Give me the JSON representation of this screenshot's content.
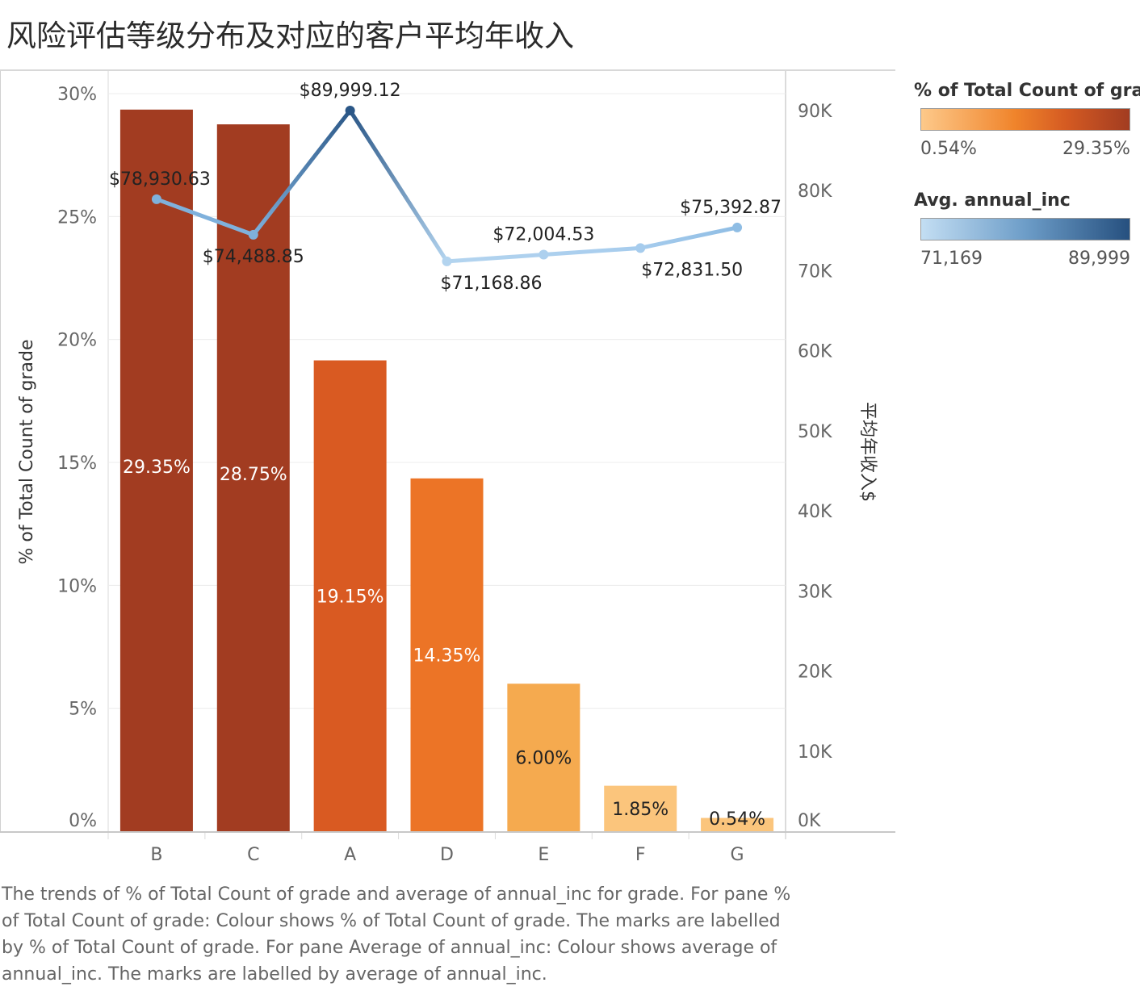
{
  "title": "风险评估等级分布及对应的客户平均年收入",
  "chart_data": {
    "type": "bar",
    "categories": [
      "B",
      "C",
      "A",
      "D",
      "E",
      "F",
      "G"
    ],
    "series": [
      {
        "name": "% of Total Count of grade",
        "axis": "left",
        "values": [
          29.35,
          28.75,
          19.15,
          14.35,
          6.0,
          1.85,
          0.54
        ],
        "labels": [
          "29.35%",
          "28.75%",
          "19.15%",
          "14.35%",
          "6.00%",
          "1.85%",
          "0.54%"
        ],
        "colors": [
          "#a23c21",
          "#a23c21",
          "#d95a22",
          "#ec7426",
          "#f5aa4f",
          "#fbc57c",
          "#fbc57c"
        ],
        "label_colors": [
          "#ffffff",
          "#ffffff",
          "#ffffff",
          "#ffffff",
          "#222222",
          "#222222",
          "#222222"
        ]
      },
      {
        "name": "Avg. annual_inc",
        "axis": "right",
        "type": "line",
        "values": [
          78930.63,
          74488.85,
          89999.12,
          71168.86,
          72004.53,
          72831.5,
          75392.87
        ],
        "labels": [
          "$78,930.63",
          "$74,488.85",
          "$89,999.12",
          "$71,168.86",
          "$72,004.53",
          "$72,831.50",
          "$75,392.87"
        ],
        "label_positions": [
          "above",
          "below",
          "above",
          "below",
          "above",
          "below",
          "above"
        ],
        "colors": [
          "#7fb1dc",
          "#7fb1dc",
          "#2b5787",
          "#b3d4ef",
          "#add0ee",
          "#a6cced",
          "#8fbde4"
        ]
      }
    ],
    "ylabel": "% of Total Count of grade",
    "ylabel_right": "平均年收入$",
    "yticks_left": [
      "0%",
      "5%",
      "10%",
      "15%",
      "20%",
      "25%",
      "30%"
    ],
    "yticks_left_values": [
      0,
      5,
      10,
      15,
      20,
      25,
      30
    ],
    "ylim_left": [
      0,
      30
    ],
    "yticks_right": [
      "0K",
      "10K",
      "20K",
      "30K",
      "40K",
      "50K",
      "60K",
      "70K",
      "80K",
      "90K"
    ],
    "yticks_right_values": [
      0,
      10000,
      20000,
      30000,
      40000,
      50000,
      60000,
      70000,
      80000,
      90000
    ],
    "ylim_right": [
      0,
      92000
    ],
    "grid": true
  },
  "legend": {
    "pct": {
      "title": "% of Total Count of gra..",
      "min": "0.54%",
      "max": "29.35%",
      "color_low": "#fdc98a",
      "color_high": "#a23c21"
    },
    "inc": {
      "title": "Avg. annual_inc",
      "min": "71,169",
      "max": "89,999",
      "color_low": "#c3def3",
      "color_high": "#26507f"
    }
  },
  "caption": "The trends of % of Total Count of grade and average of annual_inc for grade.  For pane % of Total Count of grade:  Colour shows % of Total Count of grade.  The marks are labelled by % of Total Count of grade.  For pane Average of annual_inc:  Colour shows average of annual_inc.  The marks are labelled by average of annual_inc."
}
